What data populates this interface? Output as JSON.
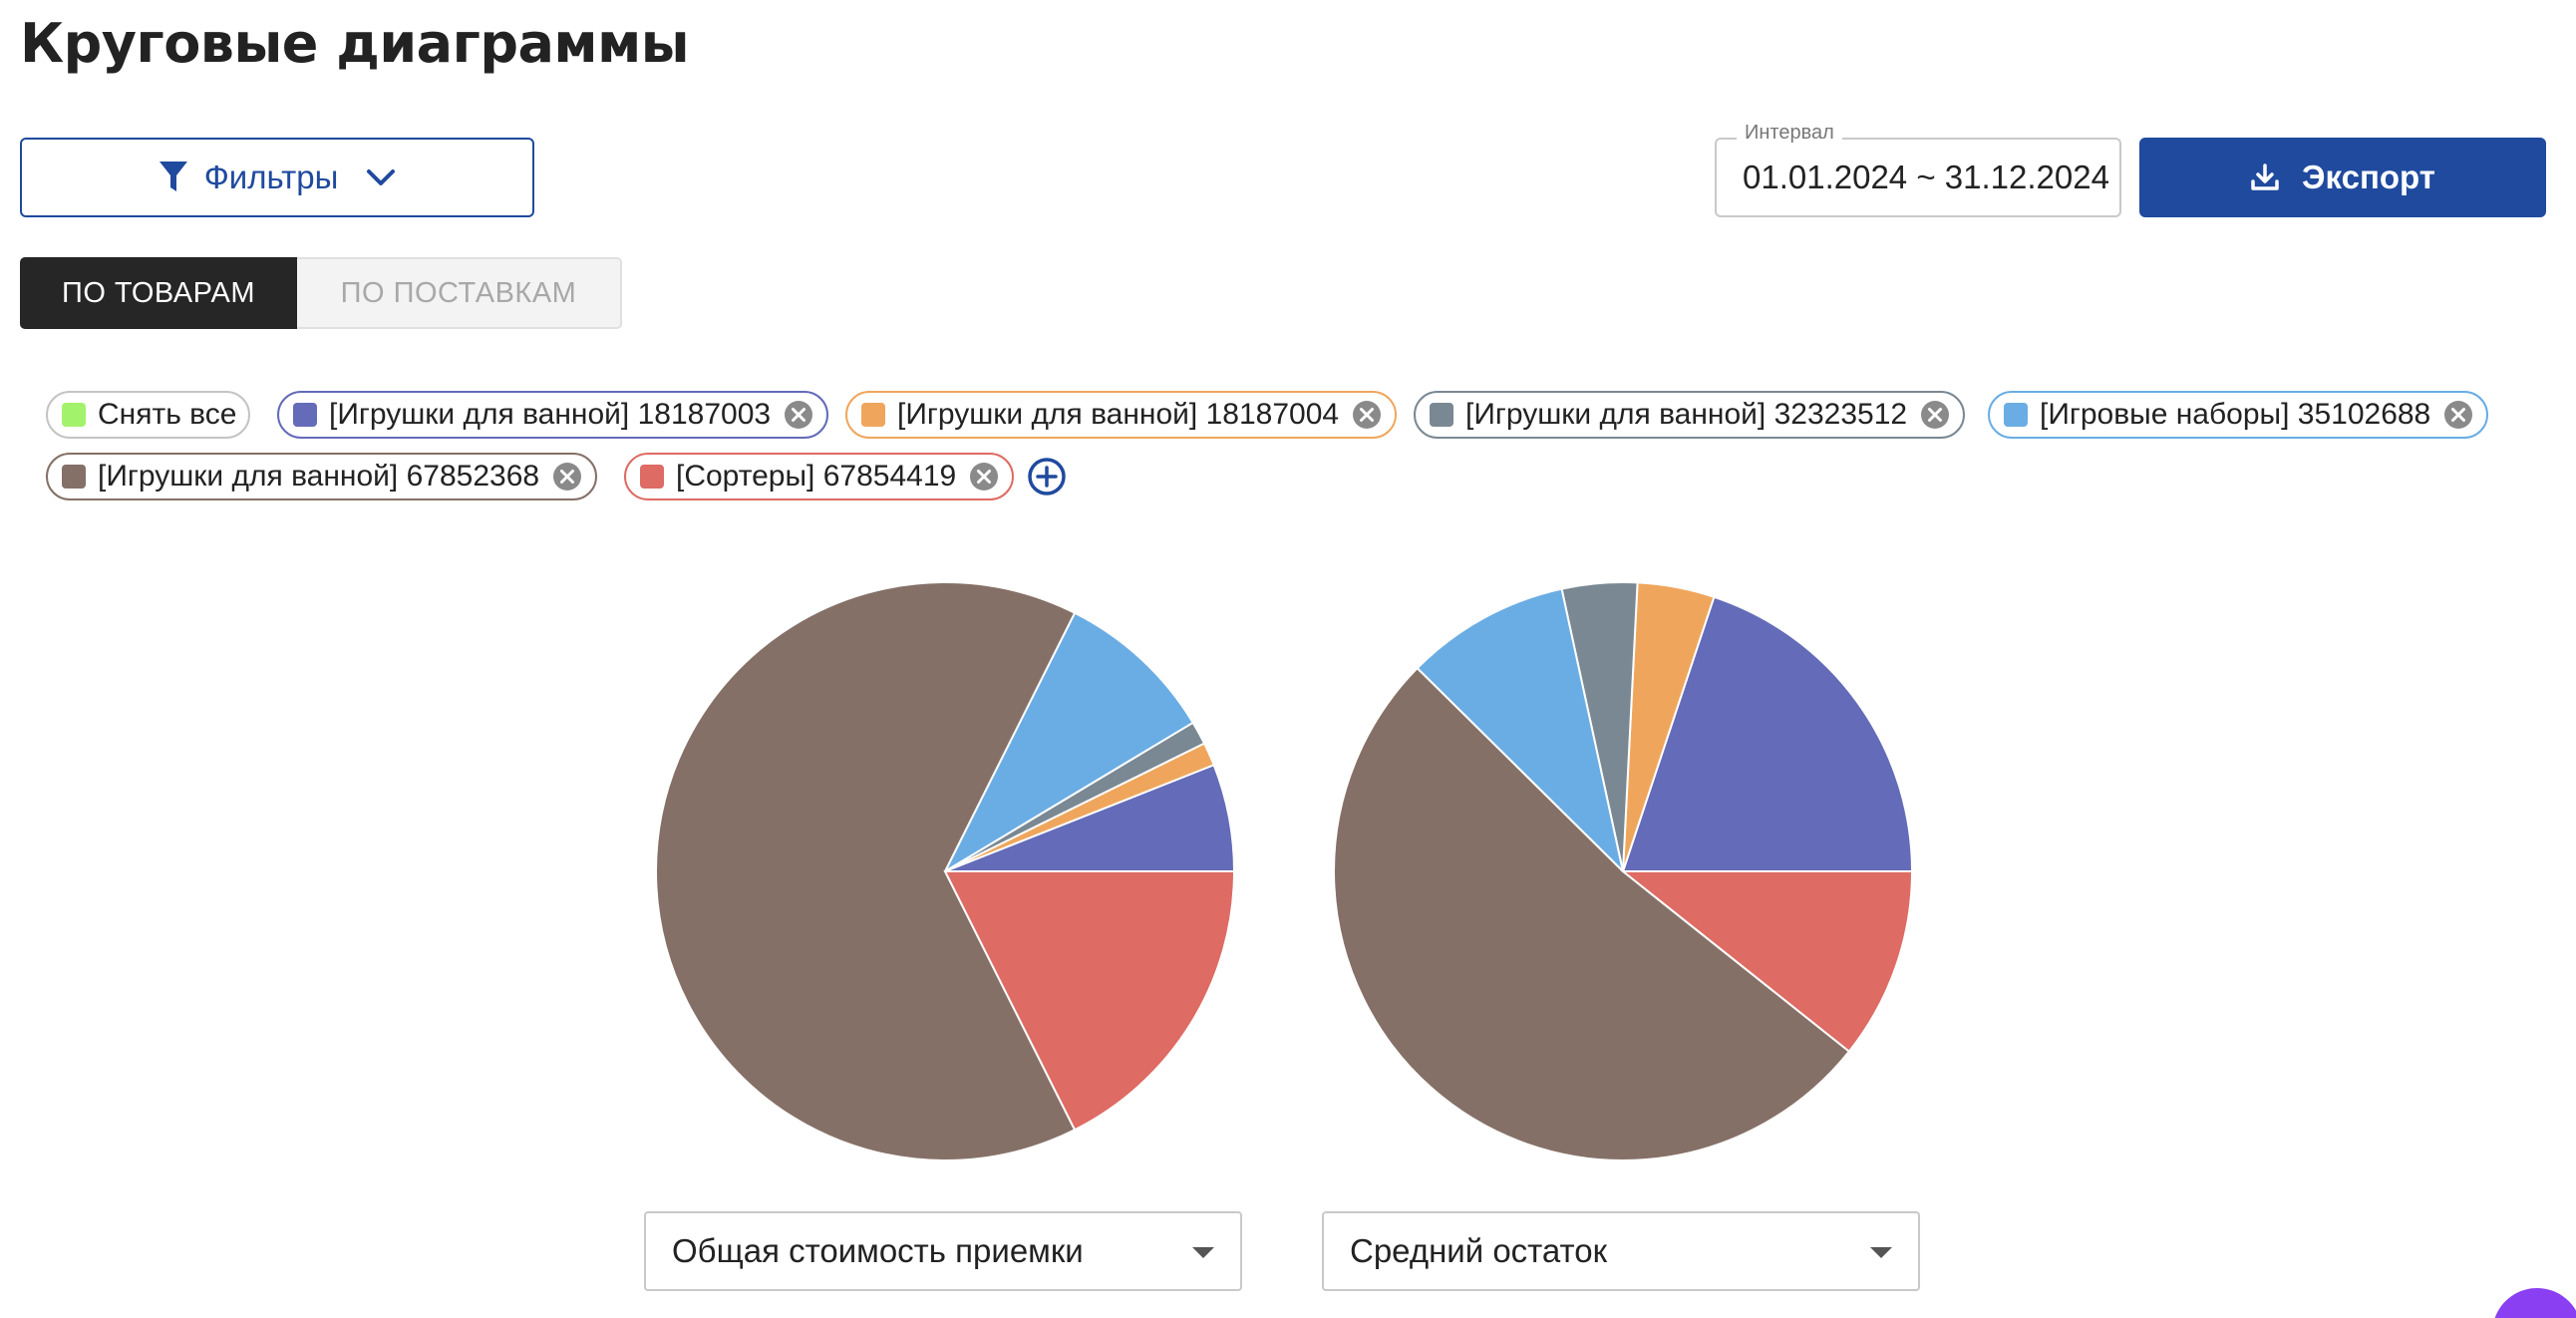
{
  "page": {
    "title": "Круговые диаграммы"
  },
  "toolbar": {
    "filters_label": "Фильтры",
    "interval_label": "Интервал",
    "interval_value": "01.01.2024 ~ 31.12.2024",
    "export_label": "Экспорт"
  },
  "tabs": [
    {
      "label": "ПО ТОВАРАМ",
      "active": true
    },
    {
      "label": "ПО ПОСТАВКАМ",
      "active": false
    }
  ],
  "chips": [
    {
      "label": "Снять все",
      "color": "#a3f26b",
      "removable": false
    },
    {
      "label": "[Игрушки для ванной] 18187003",
      "color": "#646bb8",
      "removable": true
    },
    {
      "label": "[Игрушки для ванной] 18187004",
      "color": "#efa65c",
      "removable": true
    },
    {
      "label": "[Игрушки для ванной] 32323512",
      "color": "#7a8893",
      "removable": true
    },
    {
      "label": "[Игровые наборы] 35102688",
      "color": "#6aade4",
      "removable": true
    },
    {
      "label": "[Игрушки для ванной] 67852368",
      "color": "#857067",
      "removable": true
    },
    {
      "label": "[Сортеры] 67854419",
      "color": "#de6b64",
      "removable": true
    }
  ],
  "chart_data": [
    {
      "type": "pie",
      "metric": "Общая стоимость приемки",
      "slices": [
        {
          "series": "[Игрушки для ванной] 18187003",
          "value": 6.0,
          "color": "#646bb8"
        },
        {
          "series": "[Игрушки для ванной] 18187004",
          "value": 1.3,
          "color": "#efa65c"
        },
        {
          "series": "[Игрушки для ванной] 32323512",
          "value": 1.3,
          "color": "#7a8893"
        },
        {
          "series": "[Игровые наборы] 35102688",
          "value": 9.0,
          "color": "#6aade4"
        },
        {
          "series": "[Игрушки для ванной] 67852368",
          "value": 64.8,
          "color": "#857067"
        },
        {
          "series": "[Сортеры] 67854419",
          "value": 17.6,
          "color": "#de6b64"
        }
      ]
    },
    {
      "type": "pie",
      "metric": "Средний остаток",
      "slices": [
        {
          "series": "[Игрушки для ванной] 18187003",
          "value": 19.9,
          "color": "#646bb8"
        },
        {
          "series": "[Игрушки для ванной] 18187004",
          "value": 4.3,
          "color": "#efa65c"
        },
        {
          "series": "[Игрушки для ванной] 32323512",
          "value": 4.2,
          "color": "#7a8893"
        },
        {
          "series": "[Игровые наборы] 35102688",
          "value": 9.2,
          "color": "#6aade4"
        },
        {
          "series": "[Игрушки для ванной] 67852368",
          "value": 51.7,
          "color": "#857067"
        },
        {
          "series": "[Сортеры] 67854419",
          "value": 10.7,
          "color": "#de6b64"
        }
      ]
    }
  ],
  "selects": [
    {
      "value": "Общая стоимость приемки"
    },
    {
      "value": "Средний остаток"
    }
  ],
  "icons": {
    "filter": "funnel-icon",
    "export": "download-icon",
    "chip_remove": "close-circle-icon",
    "add": "plus-circle-icon"
  },
  "colors": {
    "accent": "#1f4a9e",
    "active_tab": "#262626"
  }
}
